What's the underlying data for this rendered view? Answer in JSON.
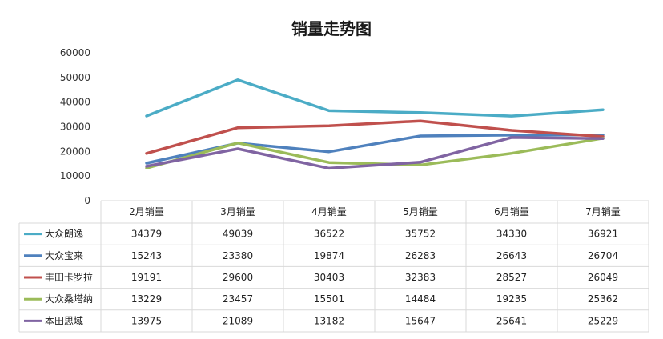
{
  "chart_data": {
    "type": "line",
    "title": "销量走势图",
    "categories": [
      "2月销量",
      "3月销量",
      "4月销量",
      "5月销量",
      "6月销量",
      "7月销量"
    ],
    "ylim": [
      0,
      60000
    ],
    "yticks": [
      "0",
      "10000",
      "20000",
      "30000",
      "40000",
      "50000",
      "60000"
    ],
    "grid": false,
    "legend": "data-table-left",
    "series": [
      {
        "name": "大众朗逸",
        "color": "#4bacc6",
        "values": [
          34379,
          49039,
          36522,
          35752,
          34330,
          36921
        ]
      },
      {
        "name": "大众宝来",
        "color": "#4f81bd",
        "values": [
          15243,
          23380,
          19874,
          26283,
          26643,
          26704
        ]
      },
      {
        "name": "丰田卡罗拉",
        "color": "#c0504d",
        "values": [
          19191,
          29600,
          30403,
          32383,
          28527,
          26049
        ]
      },
      {
        "name": "大众桑塔纳",
        "color": "#9bbb59",
        "values": [
          13229,
          23457,
          15501,
          14484,
          19235,
          25362
        ]
      },
      {
        "name": "本田思域",
        "color": "#8064a2",
        "values": [
          13975,
          21089,
          13182,
          15647,
          25641,
          25229
        ]
      }
    ]
  }
}
